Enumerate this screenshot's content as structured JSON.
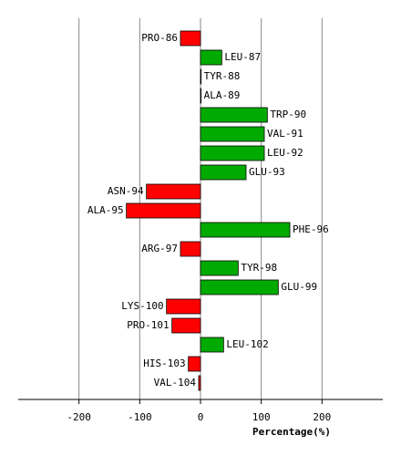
{
  "chart_data": {
    "type": "barh",
    "categories": [
      "PRO-86",
      "LEU-87",
      "TYR-88",
      "ALA-89",
      "TRP-90",
      "VAL-91",
      "LEU-92",
      "GLU-93",
      "ASN-94",
      "ALA-95",
      "PHE-96",
      "ARG-97",
      "TYR-98",
      "GLU-99",
      "LYS-100",
      "PRO-101",
      "LEU-102",
      "HIS-103",
      "VAL-104"
    ],
    "values": [
      -33,
      35,
      1,
      1,
      110,
      105,
      105,
      75,
      -89,
      -122,
      147,
      -33,
      62,
      128,
      -56,
      -47,
      38,
      -20,
      -3
    ],
    "positive_color": "#00aa00",
    "negative_color": "#ff0000",
    "xlabel": "Percentage(%)",
    "xlim": [
      -300,
      300
    ],
    "xticks": [
      -200,
      -100,
      0,
      100,
      200
    ],
    "grid": true
  }
}
